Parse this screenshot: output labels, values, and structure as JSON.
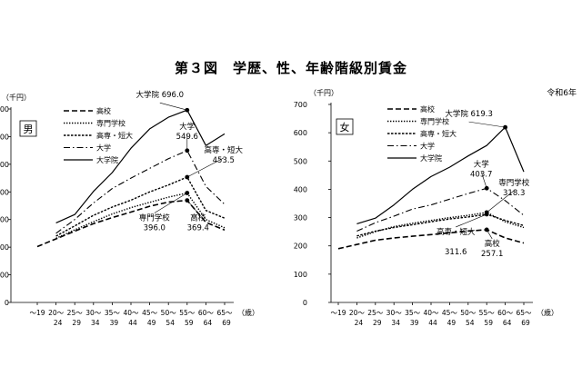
{
  "page": {
    "title": "第３図　学歴、性、年齢階級別賃金"
  },
  "chart_data": [
    {
      "type": "line",
      "panel_label": "男",
      "y_unit_label": "（千円）",
      "x_unit_label": "（歳）",
      "header_note": "",
      "categories": [
        [
          "～19",
          ""
        ],
        [
          "20～",
          "24"
        ],
        [
          "25～",
          "29"
        ],
        [
          "30～",
          "34"
        ],
        [
          "35～",
          "39"
        ],
        [
          "40～",
          "44"
        ],
        [
          "45～",
          "49"
        ],
        [
          "50～",
          "54"
        ],
        [
          "55～",
          "59"
        ],
        [
          "60～",
          "64"
        ],
        [
          "65～",
          "69"
        ]
      ],
      "y_ticks": [
        "0",
        "00",
        "00",
        "00",
        "00",
        "00",
        "00",
        "00"
      ],
      "ylim": [
        0,
        700
      ],
      "grid": false,
      "legend_position": "top-left",
      "series": [
        {
          "name": "高校",
          "style": "dashed",
          "values": [
            202,
            230,
            258,
            285,
            307,
            327,
            348,
            363,
            369.4,
            290,
            262
          ]
        },
        {
          "name": "専門学校",
          "style": "dotted",
          "values": [
            null,
            232,
            263,
            292,
            320,
            343,
            362,
            381,
            396.0,
            300,
            270
          ]
        },
        {
          "name": "高専・短大",
          "style": "dense-dotted",
          "values": [
            null,
            240,
            277,
            315,
            345,
            370,
            400,
            425,
            453.5,
            333,
            305
          ]
        },
        {
          "name": "大学",
          "style": "dash-dot",
          "values": [
            null,
            250,
            300,
            360,
            412,
            450,
            485,
            520,
            549.6,
            420,
            355
          ]
        },
        {
          "name": "大学院",
          "style": "solid",
          "values": [
            null,
            288,
            318,
            402,
            470,
            558,
            628,
            670,
            696.0,
            568,
            610
          ]
        }
      ],
      "annotations": [
        {
          "series": "大学院",
          "index": 8,
          "lines": [
            "大学院 696.0"
          ]
        },
        {
          "series": "大学",
          "index": 8,
          "lines": [
            "大学",
            "549.6"
          ]
        },
        {
          "series": "高専・短大",
          "index": 8,
          "lines": [
            "高専・短大",
            "453.5"
          ]
        },
        {
          "series": "専門学校",
          "index": 8,
          "lines": [
            "専門学校",
            "396.0"
          ]
        },
        {
          "series": "高校",
          "index": 8,
          "lines": [
            "高校",
            "369.4"
          ]
        }
      ]
    },
    {
      "type": "line",
      "panel_label": "女",
      "y_unit_label": "（千円）",
      "x_unit_label": "（歳）",
      "header_note": "令和6年",
      "categories": [
        [
          "～19",
          ""
        ],
        [
          "20～",
          "24"
        ],
        [
          "25～",
          "29"
        ],
        [
          "30～",
          "34"
        ],
        [
          "35～",
          "39"
        ],
        [
          "40～",
          "44"
        ],
        [
          "45～",
          "49"
        ],
        [
          "50～",
          "54"
        ],
        [
          "55～",
          "59"
        ],
        [
          "60～",
          "64"
        ],
        [
          "65～",
          "69"
        ]
      ],
      "y_ticks": [
        "0",
        "100",
        "200",
        "300",
        "400",
        "500",
        "600",
        "700"
      ],
      "ylim": [
        0,
        700
      ],
      "grid": false,
      "legend_position": "top-left",
      "series": [
        {
          "name": "高校",
          "style": "dashed",
          "values": [
            190,
            205,
            220,
            228,
            234,
            240,
            246,
            252,
            257.1,
            228,
            210
          ]
        },
        {
          "name": "専門学校",
          "style": "dotted",
          "values": [
            null,
            228,
            250,
            268,
            280,
            290,
            300,
            308,
            318.3,
            285,
            265
          ]
        },
        {
          "name": "高専・短大",
          "style": "dense-dotted",
          "values": [
            null,
            235,
            252,
            265,
            275,
            285,
            295,
            302,
            311.6,
            290,
            272
          ]
        },
        {
          "name": "大学",
          "style": "dash-dot",
          "values": [
            null,
            252,
            282,
            305,
            330,
            345,
            365,
            385,
            403.7,
            360,
            308
          ]
        },
        {
          "name": "大学院",
          "style": "solid",
          "values": [
            null,
            278,
            298,
            345,
            400,
            445,
            478,
            518,
            555,
            619.3,
            462
          ]
        }
      ],
      "annotations": [
        {
          "series": "大学院",
          "index": 9,
          "lines": [
            "大学院 619.3"
          ]
        },
        {
          "series": "大学",
          "index": 8,
          "lines": [
            "大学",
            "403.7"
          ]
        },
        {
          "series": "専門学校",
          "index": 8,
          "lines": [
            "専門学校",
            "318.3"
          ]
        },
        {
          "series": "高専・短大",
          "index": 8,
          "lines": [
            "高専・短大",
            "",
            "311.6"
          ]
        },
        {
          "series": "高校",
          "index": 8,
          "lines": [
            "高校",
            "257.1"
          ]
        }
      ]
    }
  ]
}
